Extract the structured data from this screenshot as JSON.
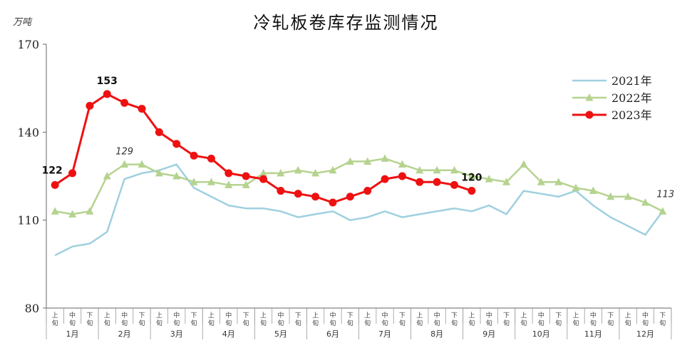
{
  "chart_data": {
    "type": "line",
    "title": "冷轧板卷库存监测情况",
    "ylabel": "万吨",
    "xlabel": "",
    "ylim": [
      80,
      170
    ],
    "yticks": [
      80,
      110,
      140,
      170
    ],
    "months": [
      "1月",
      "2月",
      "3月",
      "4月",
      "5月",
      "6月",
      "7月",
      "8月",
      "9月",
      "10月",
      "11月",
      "12月"
    ],
    "periods": [
      "上旬",
      "中旬",
      "下旬"
    ],
    "grid": false,
    "legend_position": "right",
    "series": [
      {
        "name": "2021年",
        "color": "#9FD0DF",
        "marker": "none",
        "values": [
          98,
          101,
          102,
          106,
          124,
          126,
          127,
          129,
          121,
          118,
          115,
          114,
          114,
          113,
          111,
          112,
          113,
          110,
          111,
          113,
          111,
          112,
          113,
          114,
          113,
          115,
          112,
          120,
          119,
          118,
          120,
          115,
          111,
          108,
          105,
          113
        ]
      },
      {
        "name": "2022年",
        "color": "#B5D38F",
        "marker": "triangle",
        "values": [
          113,
          112,
          113,
          125,
          129,
          129,
          126,
          125,
          123,
          123,
          122,
          122,
          126,
          126,
          127,
          126,
          127,
          130,
          130,
          131,
          129,
          127,
          127,
          127,
          125,
          124,
          123,
          129,
          123,
          123,
          121,
          120,
          118,
          118,
          116,
          113
        ]
      },
      {
        "name": "2023年",
        "color": "#EE1111",
        "marker": "circle",
        "values": [
          122,
          126,
          149,
          153,
          150,
          148,
          140,
          136,
          132,
          131,
          126,
          125,
          124,
          120,
          119,
          118,
          116,
          118,
          120,
          124,
          125,
          123,
          123,
          122,
          120
        ]
      }
    ],
    "annotations": [
      {
        "text": "122",
        "series": 2,
        "index": 0,
        "style": "bold"
      },
      {
        "text": "153",
        "series": 2,
        "index": 3,
        "style": "bold"
      },
      {
        "text": "120",
        "series": 2,
        "index": 24,
        "style": "bold"
      },
      {
        "text": "129",
        "series": 1,
        "index": 4,
        "style": "italic"
      },
      {
        "text": "113",
        "series": 1,
        "index": 35,
        "style": "italic"
      }
    ]
  }
}
